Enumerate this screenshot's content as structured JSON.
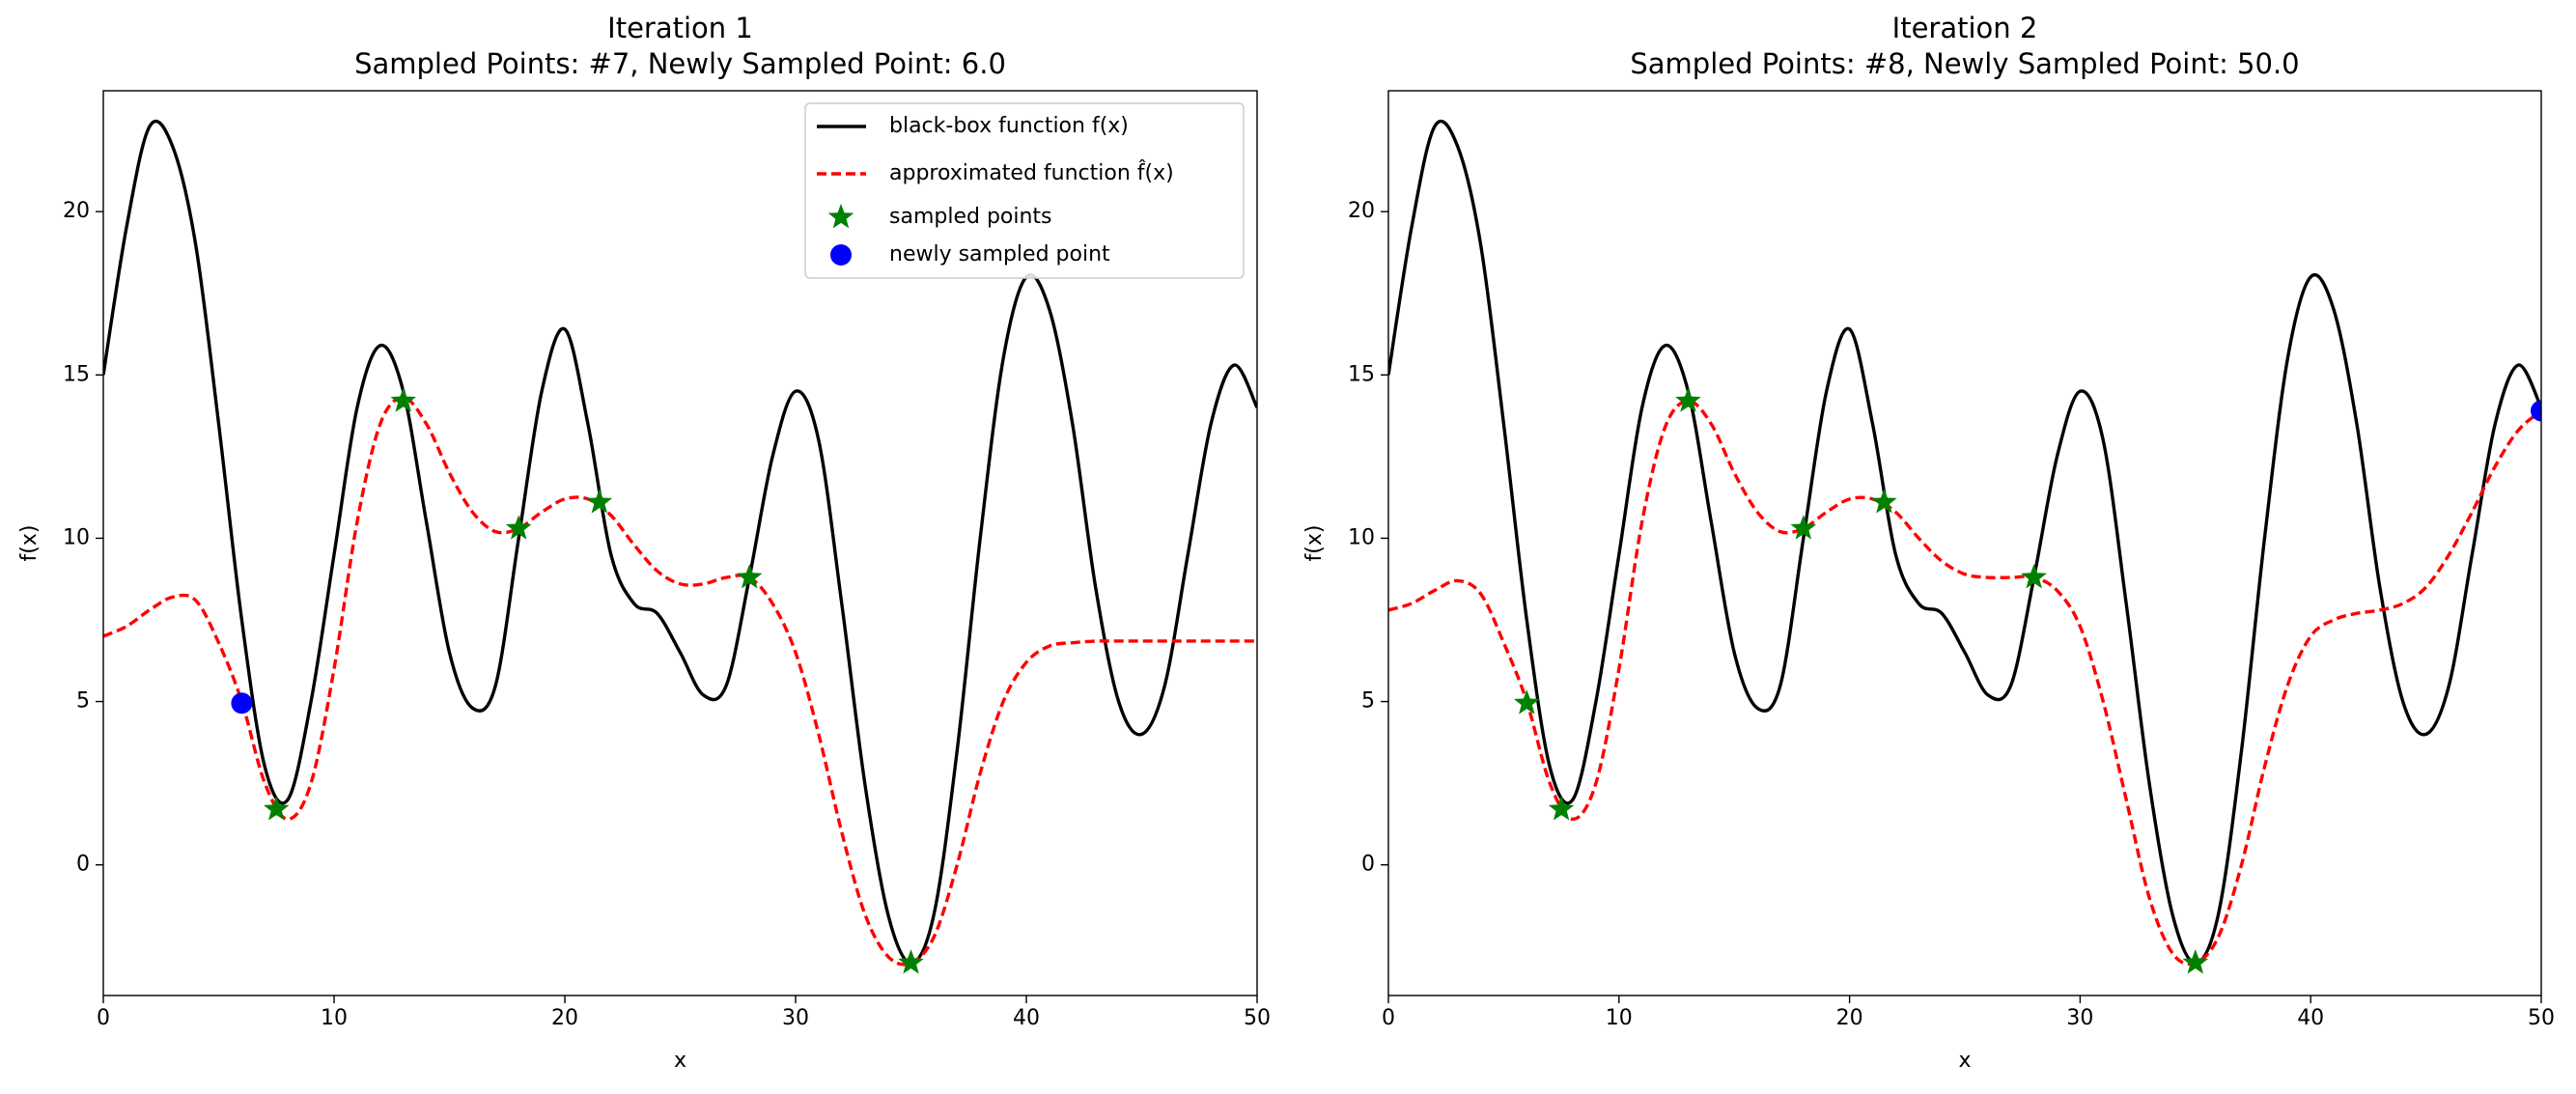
{
  "chart_data": [
    {
      "type": "line",
      "title": "Iteration 1",
      "subtitle": "Sampled Points: #7, Newly Sampled Point: 6.0",
      "xlabel": "x",
      "ylabel": "f(x)",
      "xlim": [
        0,
        50
      ],
      "ylim": [
        -4,
        23.7
      ],
      "xticks": [
        0,
        10,
        20,
        30,
        40,
        50
      ],
      "yticks": [
        0,
        5,
        10,
        15,
        20
      ],
      "legend": "upper right",
      "x": [
        0,
        1,
        2,
        3,
        4,
        5,
        6,
        7,
        8,
        9,
        10,
        11,
        12,
        13,
        14,
        15,
        16,
        17,
        18,
        19,
        20,
        21,
        22,
        23,
        24,
        25,
        26,
        27,
        28,
        29,
        30,
        31,
        32,
        33,
        34,
        35,
        36,
        37,
        38,
        39,
        40,
        41,
        42,
        43,
        44,
        45,
        46,
        47,
        48,
        49,
        50
      ],
      "series": [
        {
          "name": "black-box function f(x)",
          "color": "#000000",
          "style": "solid",
          "values": [
            15,
            19.5,
            22.6,
            22,
            19,
            13.5,
            7.5,
            3,
            2,
            5,
            9.5,
            14,
            15.9,
            14.5,
            10.5,
            6.5,
            4.8,
            5.5,
            10,
            14.5,
            16.4,
            13.5,
            9.5,
            8,
            7.7,
            6.5,
            5.2,
            5.5,
            8.8,
            12.5,
            14.5,
            13,
            8,
            2.5,
            -1.5,
            -3,
            -1.5,
            3.5,
            10,
            15.5,
            18,
            17,
            13.5,
            8.5,
            5,
            4,
            5.5,
            9.5,
            13.5,
            15.3,
            14
          ]
        },
        {
          "name": "approximated function f̂(x)",
          "color": "#ff0000",
          "style": "dashed",
          "values": [
            7,
            7.3,
            7.8,
            8.2,
            8.1,
            6.8,
            5,
            2.5,
            1.4,
            2.5,
            6,
            10.5,
            13.5,
            14.3,
            13.5,
            12,
            10.8,
            10.2,
            10.3,
            10.8,
            11.2,
            11.2,
            10.7,
            9.8,
            9,
            8.6,
            8.6,
            8.8,
            8.8,
            8,
            6.5,
            4,
            1,
            -1.5,
            -2.8,
            -3,
            -2.2,
            0,
            2.8,
            5,
            6.2,
            6.7,
            6.8,
            6.85,
            6.85,
            6.85,
            6.85,
            6.85,
            6.85,
            6.85,
            6.85
          ]
        },
        {
          "name": "sampled points",
          "color": "#008000",
          "marker": "star",
          "x": [
            7.5,
            13,
            18,
            21.5,
            28,
            35
          ],
          "values": [
            1.7,
            14.2,
            10.3,
            11.1,
            8.8,
            -3
          ]
        },
        {
          "name": "newly sampled point",
          "color": "#0000ff",
          "marker": "circle",
          "x": [
            6
          ],
          "values": [
            4.95
          ]
        }
      ]
    },
    {
      "type": "line",
      "title": "Iteration 2",
      "subtitle": "Sampled Points: #8, Newly Sampled Point: 50.0",
      "xlabel": "x",
      "ylabel": "f(x)",
      "xlim": [
        0,
        50
      ],
      "ylim": [
        -4,
        23.7
      ],
      "xticks": [
        0,
        10,
        20,
        30,
        40,
        50
      ],
      "yticks": [
        0,
        5,
        10,
        15,
        20
      ],
      "x": [
        0,
        1,
        2,
        3,
        4,
        5,
        6,
        7,
        8,
        9,
        10,
        11,
        12,
        13,
        14,
        15,
        16,
        17,
        18,
        19,
        20,
        21,
        22,
        23,
        24,
        25,
        26,
        27,
        28,
        29,
        30,
        31,
        32,
        33,
        34,
        35,
        36,
        37,
        38,
        39,
        40,
        41,
        42,
        43,
        44,
        45,
        46,
        47,
        48,
        49,
        50
      ],
      "series": [
        {
          "color": "#000000",
          "style": "solid",
          "values": [
            15,
            19.5,
            22.6,
            22,
            19,
            13.5,
            7.5,
            3,
            2,
            5,
            9.5,
            14,
            15.9,
            14.5,
            10.5,
            6.5,
            4.8,
            5.5,
            10,
            14.5,
            16.4,
            13.5,
            9.5,
            8,
            7.7,
            6.5,
            5.2,
            5.5,
            8.8,
            12.5,
            14.5,
            13,
            8,
            2.5,
            -1.5,
            -3,
            -1.5,
            3.5,
            10,
            15.5,
            18,
            17,
            13.5,
            8.5,
            5,
            4,
            5.5,
            9.5,
            13.5,
            15.3,
            14
          ]
        },
        {
          "color": "#ff0000",
          "style": "dashed",
          "values": [
            7.8,
            8,
            8.4,
            8.7,
            8.3,
            6.8,
            5,
            2.5,
            1.4,
            2.5,
            6,
            10.5,
            13.4,
            14.2,
            13.5,
            12,
            10.8,
            10.2,
            10.3,
            10.8,
            11.2,
            11.2,
            10.8,
            10,
            9.3,
            8.9,
            8.8,
            8.8,
            8.8,
            8.4,
            7.3,
            5,
            2,
            -1,
            -2.7,
            -3,
            -2.2,
            0,
            3,
            5.5,
            7,
            7.5,
            7.7,
            7.8,
            8,
            8.5,
            9.5,
            10.8,
            12.2,
            13.3,
            13.9
          ]
        },
        {
          "color": "#008000",
          "marker": "star",
          "x": [
            6,
            7.5,
            13,
            18,
            21.5,
            28,
            35
          ],
          "values": [
            4.95,
            1.7,
            14.2,
            10.3,
            11.1,
            8.8,
            -3
          ]
        },
        {
          "color": "#0000ff",
          "marker": "circle",
          "x": [
            50
          ],
          "values": [
            13.9
          ]
        }
      ]
    }
  ]
}
